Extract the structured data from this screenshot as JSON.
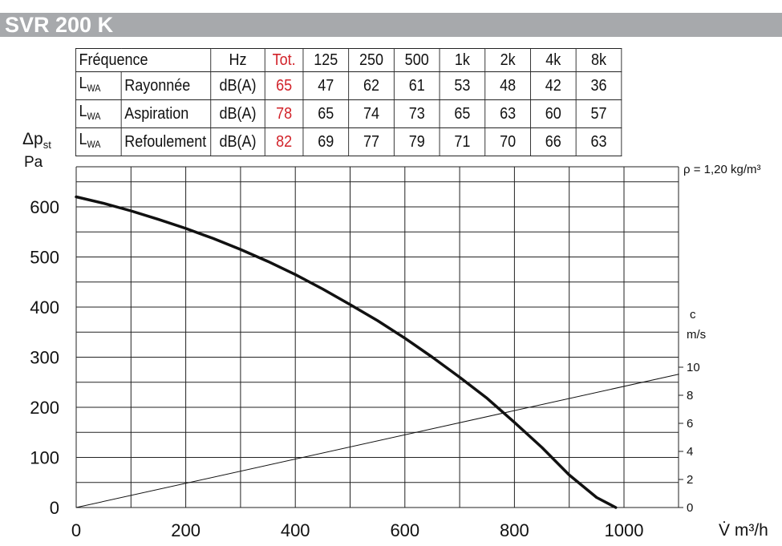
{
  "title": "SVR 200 K",
  "table": {
    "header": [
      "Fréquence",
      "Hz",
      "Tot.",
      "125",
      "250",
      "500",
      "1k",
      "2k",
      "4k",
      "8k"
    ],
    "rows": [
      {
        "symbol": "L",
        "sub": "WA",
        "label": "Rayonnée",
        "unit": "dB(A)",
        "total": "65",
        "values": [
          "47",
          "62",
          "61",
          "53",
          "48",
          "42",
          "36"
        ]
      },
      {
        "symbol": "L",
        "sub": "WA",
        "label": "Aspiration",
        "unit": "dB(A)",
        "total": "78",
        "values": [
          "65",
          "74",
          "73",
          "65",
          "63",
          "60",
          "57"
        ]
      },
      {
        "symbol": "L",
        "sub": "WA",
        "label": "Refoulement",
        "unit": "dB(A)",
        "total": "82",
        "values": [
          "69",
          "77",
          "79",
          "71",
          "70",
          "66",
          "63"
        ]
      }
    ],
    "total_color": "#d2232a"
  },
  "chart_data": {
    "type": "line",
    "ylabel_symbol": "Δp",
    "ylabel_sub": "st",
    "yunit": "Pa",
    "xlabel": "V̇ m³/h",
    "right_label": "c",
    "right_unit": "m/s",
    "density_note": "ρ = 1,20 kg/m³",
    "xlim": [
      0,
      1100
    ],
    "ylim": [
      0,
      650
    ],
    "right_lim": [
      0,
      10
    ],
    "x_ticks": [
      0,
      200,
      400,
      600,
      800,
      1000
    ],
    "y_ticks": [
      0,
      100,
      200,
      300,
      400,
      500,
      600
    ],
    "right_ticks": [
      0,
      2,
      4,
      6,
      8,
      10
    ],
    "grid": true,
    "series": [
      {
        "axis": "left",
        "x": [
          0,
          50,
          100,
          150,
          200,
          250,
          300,
          350,
          400,
          450,
          500,
          550,
          600,
          650,
          700,
          750,
          800,
          850,
          900,
          950,
          985
        ],
        "y": [
          620,
          607,
          592,
          575,
          557,
          537,
          515,
          491,
          465,
          436,
          405,
          373,
          338,
          300,
          260,
          218,
          170,
          120,
          65,
          20,
          0
        ]
      },
      {
        "axis": "right",
        "x": [
          0,
          1100
        ],
        "y": [
          0,
          9.5
        ]
      }
    ]
  }
}
